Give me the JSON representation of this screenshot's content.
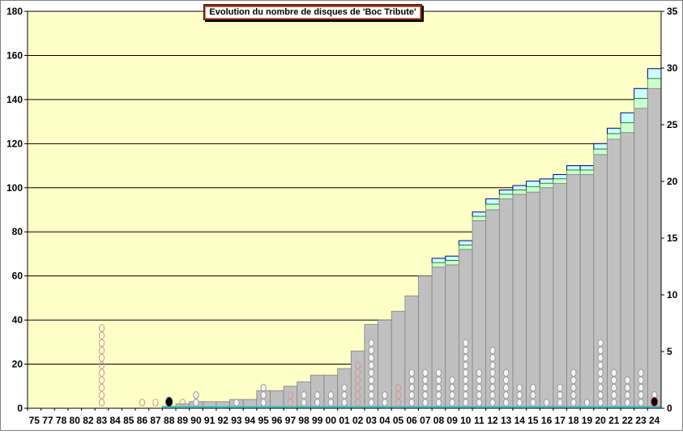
{
  "chart_data": {
    "type": "bar",
    "title": "Evolution du nombre de disques de 'Boc Tribute'",
    "categories": [
      "75",
      "77",
      "78",
      "80",
      "82",
      "83",
      "84",
      "85",
      "86",
      "87",
      "88",
      "89",
      "90",
      "91",
      "92",
      "93",
      "94",
      "95",
      "96",
      "97",
      "98",
      "99",
      "00",
      "01",
      "02",
      "03",
      "04",
      "05",
      "06",
      "07",
      "08",
      "09",
      "10",
      "11",
      "12",
      "13",
      "14",
      "15",
      "16",
      "17",
      "18",
      "19",
      "20",
      "21",
      "22",
      "23",
      "24"
    ],
    "values": [
      0,
      0,
      0,
      0,
      0,
      0,
      0,
      0,
      0,
      0,
      1,
      2,
      3,
      3,
      3,
      4,
      4,
      8,
      8,
      10,
      12,
      15,
      15,
      18,
      26,
      38,
      40,
      44,
      51,
      60,
      64,
      65,
      72,
      85,
      90,
      95,
      97,
      98,
      100,
      102,
      106,
      106,
      115,
      122,
      125,
      136,
      145
    ],
    "top_values": [
      0,
      0,
      0,
      0,
      0,
      0,
      0,
      0,
      0,
      0,
      1,
      2,
      3,
      3,
      3,
      4,
      4,
      8,
      8,
      10,
      12,
      15,
      15,
      18,
      26,
      38,
      40,
      44,
      51,
      60,
      68,
      69,
      76,
      89,
      95,
      99,
      101,
      103,
      104,
      106,
      110,
      110,
      120,
      127,
      134,
      145,
      154
    ],
    "yleft": {
      "min": 0,
      "max": 180,
      "ticks": [
        "0",
        "20",
        "40",
        "60",
        "80",
        "100",
        "120",
        "140",
        "160",
        "180"
      ]
    },
    "yright": {
      "min": 0,
      "max": 35,
      "ticks": [
        "0",
        "5",
        "10",
        "15",
        "20",
        "25",
        "30",
        "35"
      ]
    },
    "grid": true,
    "colors": {
      "plot_bg": "#ffffc8",
      "bar": "#c0c0c0",
      "green": "#ccffcc",
      "blue": "#ccffff",
      "icon": "#cc9999"
    }
  }
}
